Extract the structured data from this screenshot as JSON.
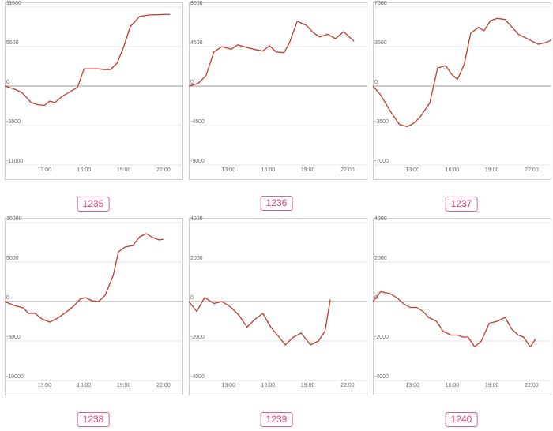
{
  "colors": {
    "line": "#c0392b",
    "zero": "#999999",
    "grid": "#e6e6e6",
    "frame": "#cccccc",
    "badge": "#e0407a"
  },
  "chart_data": [
    {
      "type": "line",
      "id_label": "1235",
      "ylim": [
        -11000,
        11000
      ],
      "xlim": [
        10,
        23.5
      ],
      "yticks": [
        11000,
        5500,
        0,
        -5500,
        -11000
      ],
      "yticklabels": [
        "11000",
        "5500",
        "0",
        "-5500",
        "-11000"
      ],
      "xticks": [
        13,
        16,
        19,
        22
      ],
      "xticklabels": [
        "13:00",
        "16:00",
        "19:00",
        "22:00"
      ],
      "x": [
        10.0,
        10.7,
        11.3,
        12.0,
        12.5,
        13.0,
        13.4,
        13.8,
        14.3,
        15.1,
        15.5,
        16.0,
        16.5,
        17.0,
        17.5,
        18.0,
        18.5,
        19.0,
        19.5,
        20.2,
        20.9,
        22.5
      ],
      "y": [
        0,
        -400,
        -900,
        -2300,
        -2600,
        -2700,
        -2100,
        -2300,
        -1500,
        -600,
        -200,
        2400,
        2400,
        2400,
        2300,
        2300,
        3200,
        5500,
        8300,
        9700,
        9900,
        10000
      ]
    },
    {
      "type": "line",
      "id_label": "1236",
      "ylim": [
        -9000,
        9000
      ],
      "xlim": [
        10,
        23.5
      ],
      "yticks": [
        9000,
        4500,
        0,
        -4500,
        -9000
      ],
      "yticklabels": [
        "9000",
        "4500",
        "0",
        "-4500",
        "-9000"
      ],
      "xticks": [
        13,
        16,
        19,
        22
      ],
      "xticklabels": [
        "13:00",
        "16:00",
        "19:00",
        "22:00"
      ],
      "x": [
        10.0,
        10.7,
        11.3,
        11.9,
        12.5,
        13.2,
        13.7,
        14.4,
        14.9,
        15.6,
        16.1,
        16.6,
        17.2,
        17.6,
        18.2,
        18.9,
        19.4,
        19.9,
        20.5,
        21.1,
        21.7,
        22.5
      ],
      "y": [
        0,
        300,
        1200,
        3900,
        4500,
        4200,
        4700,
        4400,
        4200,
        4000,
        4600,
        3900,
        3800,
        4900,
        7400,
        6900,
        6100,
        5600,
        5900,
        5400,
        6200,
        5100
      ]
    },
    {
      "type": "line",
      "id_label": "1237",
      "ylim": [
        -7000,
        7000
      ],
      "xlim": [
        10,
        23.5
      ],
      "yticks": [
        7000,
        3500,
        0,
        -3500,
        -7000
      ],
      "yticklabels": [
        "7000",
        "3500",
        "0",
        "-3500",
        "-7000"
      ],
      "xticks": [
        13,
        16,
        19,
        22
      ],
      "xticklabels": [
        "13:00",
        "16:00",
        "19:00",
        "22:00"
      ],
      "x": [
        10.0,
        10.6,
        11.3,
        12.0,
        12.6,
        13.1,
        13.6,
        14.3,
        14.9,
        15.5,
        16.0,
        16.4,
        16.9,
        17.4,
        18.0,
        18.4,
        18.9,
        19.4,
        20.0,
        21.0,
        22.5,
        23.2,
        23.5
      ],
      "y": [
        0,
        -800,
        -2200,
        -3400,
        -3600,
        -3300,
        -2700,
        -1500,
        1600,
        1800,
        1000,
        600,
        1900,
        4700,
        5200,
        4900,
        5800,
        6000,
        5900,
        4600,
        3700,
        3900,
        4100
      ]
    },
    {
      "type": "line",
      "id_label": "1238",
      "ylim": [
        -10000,
        10000
      ],
      "xlim": [
        10,
        23.5
      ],
      "yticks": [
        10000,
        5000,
        0,
        -5000,
        -10000
      ],
      "yticklabels": [
        "10000",
        "5000",
        "0",
        "-5000",
        "-10000"
      ],
      "xticks": [
        13,
        16,
        19,
        22
      ],
      "xticklabels": [
        "13:00",
        "16:00",
        "19:00",
        "22:00"
      ],
      "x": [
        10.0,
        10.7,
        11.4,
        11.8,
        12.3,
        12.8,
        13.4,
        14.0,
        14.6,
        15.2,
        15.7,
        16.1,
        16.6,
        17.1,
        17.6,
        18.2,
        18.6,
        19.1,
        19.7,
        20.2,
        20.7,
        21.2,
        21.7,
        22.0
      ],
      "y": [
        0,
        -500,
        -800,
        -1500,
        -1500,
        -2200,
        -2600,
        -2100,
        -1400,
        -600,
        300,
        500,
        100,
        0,
        800,
        3300,
        6300,
        6900,
        7100,
        8200,
        8600,
        8100,
        7800,
        7900
      ]
    },
    {
      "type": "line",
      "id_label": "1239",
      "ylim": [
        -4000,
        4000
      ],
      "xlim": [
        10,
        23.5
      ],
      "yticks": [
        4000,
        2000,
        0,
        -2000,
        -4000
      ],
      "yticklabels": [
        "4000",
        "2000",
        "0",
        "-2000",
        "-4000"
      ],
      "xticks": [
        13,
        16,
        19,
        22
      ],
      "xticklabels": [
        "13:00",
        "16:00",
        "19:00",
        "22:00"
      ],
      "x": [
        10.0,
        10.6,
        11.2,
        11.9,
        12.5,
        13.2,
        13.8,
        14.4,
        15.0,
        15.6,
        16.2,
        16.7,
        17.3,
        17.9,
        18.5,
        19.2,
        19.8,
        20.3,
        20.7
      ],
      "y": [
        0,
        -500,
        200,
        -100,
        0,
        -300,
        -700,
        -1300,
        -900,
        -600,
        -1300,
        -1700,
        -2200,
        -1800,
        -1600,
        -2200,
        -2000,
        -1500,
        100
      ]
    },
    {
      "type": "line",
      "id_label": "1240",
      "ylim": [
        -4000,
        4000
      ],
      "xlim": [
        10,
        23.5
      ],
      "yticks": [
        4000,
        2000,
        0,
        -2000,
        -4000
      ],
      "yticklabels": [
        "4000",
        "2000",
        "0",
        "-2000",
        "-4000"
      ],
      "xticks": [
        13,
        16,
        19,
        22
      ],
      "xticklabels": [
        "13:00",
        "16:00",
        "19:00",
        "22:00"
      ],
      "x": [
        10.0,
        10.6,
        11.3,
        11.8,
        12.3,
        12.8,
        13.3,
        13.8,
        14.2,
        14.8,
        15.3,
        15.9,
        16.4,
        16.8,
        17.2,
        17.7,
        18.2,
        18.8,
        19.4,
        20.0,
        20.5,
        21.0,
        21.4,
        21.9,
        22.3
      ],
      "y": [
        0,
        500,
        400,
        200,
        -100,
        -300,
        -300,
        -500,
        -800,
        -1000,
        -1500,
        -1700,
        -1700,
        -1800,
        -1800,
        -2300,
        -2000,
        -1100,
        -1000,
        -800,
        -1400,
        -1700,
        -1800,
        -2300,
        -1900
      ]
    }
  ]
}
